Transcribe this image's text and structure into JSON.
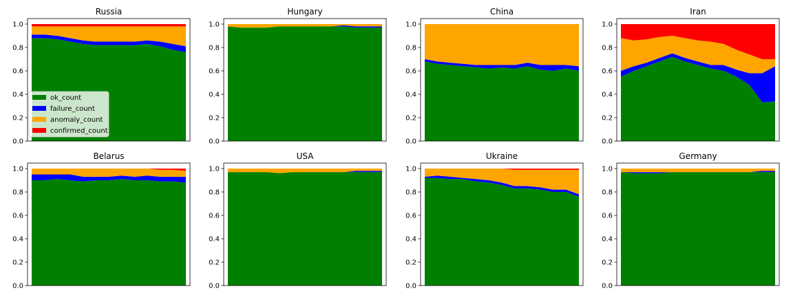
{
  "legend_entries": [
    {
      "label": "ok_count",
      "color": "#008000"
    },
    {
      "label": "failure_count",
      "color": "#0000ff"
    },
    {
      "label": "anomaly_count",
      "color": "#ffa500"
    },
    {
      "label": "confirmed_count",
      "color": "#ff0000"
    }
  ],
  "chart_data": [
    {
      "type": "area",
      "stacked": true,
      "title": "Russia",
      "ylim": [
        0,
        1
      ],
      "yticks": [
        "0.0",
        "0.2",
        "0.4",
        "0.6",
        "0.8",
        "1.0"
      ],
      "legend": "lower-left",
      "series": [
        {
          "name": "ok_count",
          "values": [
            0.88,
            0.88,
            0.87,
            0.85,
            0.83,
            0.82,
            0.82,
            0.82,
            0.82,
            0.83,
            0.81,
            0.78,
            0.76
          ]
        },
        {
          "name": "failure_count",
          "values": [
            0.03,
            0.03,
            0.03,
            0.03,
            0.03,
            0.03,
            0.03,
            0.03,
            0.03,
            0.03,
            0.04,
            0.05,
            0.05
          ]
        },
        {
          "name": "anomaly_count",
          "values": [
            0.07,
            0.07,
            0.08,
            0.1,
            0.12,
            0.13,
            0.13,
            0.13,
            0.13,
            0.12,
            0.13,
            0.15,
            0.17
          ]
        },
        {
          "name": "confirmed_count",
          "values": [
            0.02,
            0.02,
            0.02,
            0.02,
            0.02,
            0.02,
            0.02,
            0.02,
            0.02,
            0.02,
            0.02,
            0.02,
            0.02
          ]
        }
      ]
    },
    {
      "type": "area",
      "stacked": true,
      "title": "Hungary",
      "ylim": [
        0,
        1
      ],
      "yticks": [
        "0.0",
        "0.2",
        "0.4",
        "0.6",
        "0.8",
        "1.0"
      ],
      "series": [
        {
          "name": "ok_count",
          "values": [
            0.98,
            0.97,
            0.97,
            0.97,
            0.98,
            0.98,
            0.98,
            0.98,
            0.98,
            0.98,
            0.97,
            0.97,
            0.97
          ]
        },
        {
          "name": "failure_count",
          "values": [
            0.0,
            0.0,
            0.0,
            0.0,
            0.0,
            0.0,
            0.0,
            0.0,
            0.0,
            0.01,
            0.01,
            0.01,
            0.01
          ]
        },
        {
          "name": "anomaly_count",
          "values": [
            0.02,
            0.03,
            0.03,
            0.03,
            0.02,
            0.02,
            0.02,
            0.02,
            0.02,
            0.01,
            0.02,
            0.02,
            0.02
          ]
        },
        {
          "name": "confirmed_count",
          "values": [
            0,
            0,
            0,
            0,
            0,
            0,
            0,
            0,
            0,
            0,
            0,
            0,
            0
          ]
        }
      ]
    },
    {
      "type": "area",
      "stacked": true,
      "title": "China",
      "ylim": [
        0,
        1
      ],
      "yticks": [
        "0.0",
        "0.2",
        "0.4",
        "0.6",
        "0.8",
        "1.0"
      ],
      "series": [
        {
          "name": "ok_count",
          "values": [
            0.68,
            0.66,
            0.65,
            0.64,
            0.63,
            0.62,
            0.63,
            0.62,
            0.64,
            0.61,
            0.6,
            0.62,
            0.6
          ]
        },
        {
          "name": "failure_count",
          "values": [
            0.02,
            0.02,
            0.02,
            0.02,
            0.02,
            0.03,
            0.02,
            0.03,
            0.03,
            0.04,
            0.05,
            0.03,
            0.04
          ]
        },
        {
          "name": "anomaly_count",
          "values": [
            0.3,
            0.32,
            0.33,
            0.34,
            0.35,
            0.35,
            0.35,
            0.35,
            0.33,
            0.35,
            0.35,
            0.35,
            0.36
          ]
        },
        {
          "name": "confirmed_count",
          "values": [
            0,
            0,
            0,
            0,
            0,
            0,
            0,
            0,
            0,
            0,
            0,
            0,
            0
          ]
        }
      ]
    },
    {
      "type": "area",
      "stacked": true,
      "title": "Iran",
      "ylim": [
        0,
        1
      ],
      "yticks": [
        "0.0",
        "0.2",
        "0.4",
        "0.6",
        "0.8",
        "1.0"
      ],
      "series": [
        {
          "name": "ok_count",
          "values": [
            0.55,
            0.6,
            0.64,
            0.68,
            0.72,
            0.68,
            0.65,
            0.62,
            0.6,
            0.55,
            0.48,
            0.33,
            0.34
          ]
        },
        {
          "name": "failure_count",
          "values": [
            0.05,
            0.04,
            0.03,
            0.03,
            0.03,
            0.03,
            0.03,
            0.03,
            0.05,
            0.06,
            0.1,
            0.25,
            0.3
          ]
        },
        {
          "name": "anomaly_count",
          "values": [
            0.28,
            0.22,
            0.2,
            0.18,
            0.15,
            0.17,
            0.18,
            0.2,
            0.18,
            0.17,
            0.16,
            0.12,
            0.06
          ]
        },
        {
          "name": "confirmed_count",
          "values": [
            0.12,
            0.14,
            0.13,
            0.11,
            0.1,
            0.12,
            0.14,
            0.15,
            0.17,
            0.22,
            0.26,
            0.3,
            0.3
          ]
        }
      ]
    },
    {
      "type": "area",
      "stacked": true,
      "title": "Belarus",
      "ylim": [
        0,
        1
      ],
      "yticks": [
        "0.0",
        "0.2",
        "0.4",
        "0.6",
        "0.8",
        "1.0"
      ],
      "series": [
        {
          "name": "ok_count",
          "values": [
            0.9,
            0.9,
            0.91,
            0.9,
            0.89,
            0.9,
            0.9,
            0.91,
            0.9,
            0.9,
            0.89,
            0.89,
            0.88
          ]
        },
        {
          "name": "failure_count",
          "values": [
            0.05,
            0.05,
            0.04,
            0.05,
            0.04,
            0.03,
            0.03,
            0.03,
            0.03,
            0.04,
            0.04,
            0.04,
            0.05
          ]
        },
        {
          "name": "anomaly_count",
          "values": [
            0.05,
            0.05,
            0.05,
            0.05,
            0.07,
            0.07,
            0.07,
            0.06,
            0.07,
            0.06,
            0.06,
            0.06,
            0.05
          ]
        },
        {
          "name": "confirmed_count",
          "values": [
            0,
            0,
            0,
            0,
            0,
            0,
            0,
            0,
            0,
            0,
            0.01,
            0.01,
            0.02
          ]
        }
      ]
    },
    {
      "type": "area",
      "stacked": true,
      "title": "USA",
      "ylim": [
        0,
        1
      ],
      "yticks": [
        "0.0",
        "0.2",
        "0.4",
        "0.6",
        "0.8",
        "1.0"
      ],
      "series": [
        {
          "name": "ok_count",
          "values": [
            0.97,
            0.97,
            0.97,
            0.97,
            0.96,
            0.97,
            0.97,
            0.97,
            0.97,
            0.97,
            0.97,
            0.97,
            0.97
          ]
        },
        {
          "name": "failure_count",
          "values": [
            0.0,
            0.0,
            0.0,
            0.0,
            0.0,
            0.0,
            0.0,
            0.0,
            0.0,
            0.0,
            0.01,
            0.01,
            0.01
          ]
        },
        {
          "name": "anomaly_count",
          "values": [
            0.03,
            0.03,
            0.03,
            0.03,
            0.04,
            0.03,
            0.03,
            0.03,
            0.03,
            0.03,
            0.02,
            0.02,
            0.02
          ]
        },
        {
          "name": "confirmed_count",
          "values": [
            0,
            0,
            0,
            0,
            0,
            0,
            0,
            0,
            0,
            0,
            0,
            0,
            0
          ]
        }
      ]
    },
    {
      "type": "area",
      "stacked": true,
      "title": "Ukraine",
      "ylim": [
        0,
        1
      ],
      "yticks": [
        "0.0",
        "0.2",
        "0.4",
        "0.6",
        "0.8",
        "1.0"
      ],
      "series": [
        {
          "name": "ok_count",
          "values": [
            0.92,
            0.92,
            0.91,
            0.91,
            0.89,
            0.88,
            0.86,
            0.83,
            0.83,
            0.82,
            0.8,
            0.8,
            0.76
          ]
        },
        {
          "name": "failure_count",
          "values": [
            0.01,
            0.02,
            0.02,
            0.01,
            0.02,
            0.02,
            0.02,
            0.02,
            0.02,
            0.02,
            0.02,
            0.02,
            0.02
          ]
        },
        {
          "name": "anomaly_count",
          "values": [
            0.07,
            0.06,
            0.07,
            0.08,
            0.09,
            0.1,
            0.12,
            0.14,
            0.14,
            0.15,
            0.17,
            0.17,
            0.21
          ]
        },
        {
          "name": "confirmed_count",
          "values": [
            0,
            0,
            0,
            0,
            0,
            0,
            0,
            0.01,
            0.01,
            0.01,
            0.01,
            0.01,
            0.01
          ]
        }
      ]
    },
    {
      "type": "area",
      "stacked": true,
      "title": "Germany",
      "ylim": [
        0,
        1
      ],
      "yticks": [
        "0.0",
        "0.2",
        "0.4",
        "0.6",
        "0.8",
        "1.0"
      ],
      "series": [
        {
          "name": "ok_count",
          "values": [
            0.97,
            0.96,
            0.96,
            0.96,
            0.97,
            0.97,
            0.97,
            0.97,
            0.97,
            0.97,
            0.97,
            0.97,
            0.97
          ]
        },
        {
          "name": "failure_count",
          "values": [
            0.0,
            0.01,
            0.01,
            0.01,
            0.0,
            0.0,
            0.0,
            0.0,
            0.0,
            0.0,
            0.0,
            0.01,
            0.01
          ]
        },
        {
          "name": "anomaly_count",
          "values": [
            0.03,
            0.03,
            0.03,
            0.03,
            0.03,
            0.03,
            0.03,
            0.03,
            0.03,
            0.03,
            0.03,
            0.02,
            0.02
          ]
        },
        {
          "name": "confirmed_count",
          "values": [
            0,
            0,
            0,
            0,
            0,
            0,
            0,
            0,
            0,
            0,
            0,
            0,
            0
          ]
        }
      ]
    }
  ]
}
